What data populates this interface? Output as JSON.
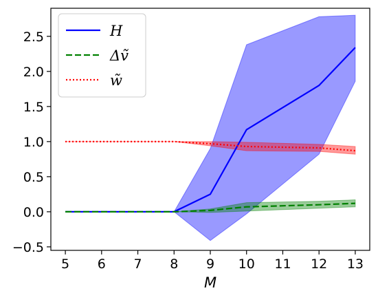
{
  "chart_data": {
    "type": "line",
    "xlabel": "M",
    "ylabel": "",
    "title": "",
    "xlim": [
      4.6,
      13.4
    ],
    "ylim": [
      -0.55,
      2.9
    ],
    "xticks": [
      5,
      6,
      7,
      8,
      9,
      10,
      11,
      12,
      13
    ],
    "yticks": [
      -0.5,
      0.0,
      0.5,
      1.0,
      1.5,
      2.0,
      2.5
    ],
    "ytick_labels": [
      "−0.5",
      "0.0",
      "0.5",
      "1.0",
      "1.5",
      "2.0",
      "2.5"
    ],
    "grid": false,
    "legend_position": "top-left",
    "x": [
      5,
      6,
      7,
      8,
      9,
      10,
      12,
      13
    ],
    "series": [
      {
        "name": "H",
        "color": "#0000ff",
        "line_style": "solid",
        "values": [
          0.0,
          0.0,
          0.0,
          0.0,
          0.25,
          1.17,
          1.8,
          2.34
        ],
        "band_lower": [
          0.0,
          0.0,
          0.0,
          0.0,
          -0.41,
          -0.03,
          0.82,
          1.86
        ],
        "band_upper": [
          0.0,
          0.0,
          0.0,
          0.0,
          0.9,
          2.38,
          2.78,
          2.8
        ],
        "band_color": "#0000ff"
      },
      {
        "name": "Δṽ",
        "color": "#008000",
        "line_style": "dashed",
        "values": [
          0.0,
          0.0,
          0.0,
          0.0,
          0.02,
          0.07,
          0.1,
          0.12
        ],
        "band_lower": [
          0.0,
          0.0,
          0.0,
          0.0,
          -0.01,
          0.01,
          0.05,
          0.07
        ],
        "band_upper": [
          0.0,
          0.0,
          0.0,
          0.0,
          0.04,
          0.13,
          0.15,
          0.17
        ],
        "band_color": "#008000"
      },
      {
        "name": "w̃",
        "color": "#ff0000",
        "line_style": "dotted",
        "values": [
          1.0,
          1.0,
          1.0,
          1.0,
          0.97,
          0.93,
          0.91,
          0.87
        ],
        "band_lower": [
          1.0,
          1.0,
          1.0,
          1.0,
          0.94,
          0.87,
          0.86,
          0.82
        ],
        "band_upper": [
          1.0,
          1.0,
          1.0,
          1.0,
          1.0,
          0.99,
          0.96,
          0.93
        ],
        "band_color": "#ff0000"
      }
    ]
  }
}
